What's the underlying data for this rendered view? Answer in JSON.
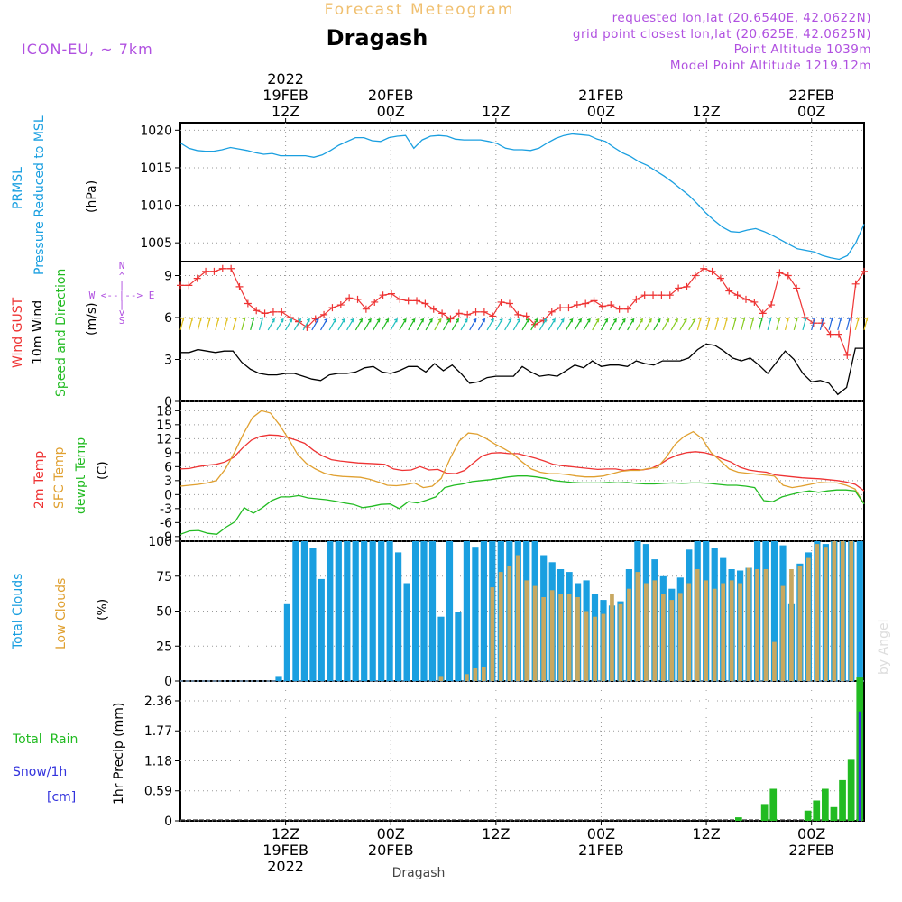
{
  "header": {
    "subtitle": "Forecast Meteogram",
    "title": "Dragash",
    "model": "ICON-EU, ~ 7km",
    "requested": "requested lon,lat (20.6540E, 42.0622N)",
    "gridpoint": "grid point closest lon,lat (20.625E, 42.0625N)",
    "point_alt": "Point Altitude 1039m",
    "model_alt": "Model Point Altitude 1219.12m",
    "footer": "Dragash",
    "credit": "by Angel"
  },
  "colors": {
    "pressure": "#1a9fe0",
    "gust": "#ee3333",
    "wind": "#000000",
    "dir_label": "#22bb22",
    "temp2m": "#ee3333",
    "sfc": "#e0a030",
    "dewpt": "#22bb22",
    "total_clouds": "#1a9fe0",
    "low_clouds": "#c8a860",
    "rain": "#22bb22",
    "snow": "#3333dd",
    "header_orange": "#f0c070",
    "header_purple": "#b050e0"
  },
  "time_axis": {
    "top_labels": [
      {
        "lines": [
          "2022",
          "19FEB",
          "12Z"
        ]
      },
      {
        "lines": [
          "20FEB",
          "00Z"
        ]
      },
      {
        "lines": [
          "12Z"
        ]
      },
      {
        "lines": [
          "21FEB",
          "00Z"
        ]
      },
      {
        "lines": [
          "12Z"
        ]
      },
      {
        "lines": [
          "22FEB",
          "00Z"
        ]
      }
    ],
    "bottom_labels": [
      {
        "lines": [
          "12Z",
          "19FEB",
          "2022"
        ]
      },
      {
        "lines": [
          "00Z",
          "20FEB"
        ]
      },
      {
        "lines": [
          "12Z"
        ]
      },
      {
        "lines": [
          "00Z",
          "21FEB"
        ]
      },
      {
        "lines": [
          "12Z"
        ]
      },
      {
        "lines": [
          "00Z",
          "22FEB"
        ]
      }
    ],
    "tick_hours": [
      12,
      24,
      36,
      48,
      60,
      72
    ]
  },
  "panels": {
    "pressure": {
      "label1": "PRMSL",
      "label2": "Pressure Reduced to MSL",
      "unit": "(hPa)"
    },
    "wind": {
      "label_gust": "Wind GUST",
      "label_wind": "10m Wind",
      "label_dir": "Speed and Direction",
      "unit": "(m/s)",
      "compass": [
        "N",
        "^",
        "|",
        "W <--|--> E",
        "|",
        "v",
        "S"
      ]
    },
    "temp": {
      "label1": "2m Temp",
      "label2": "SFC Temp",
      "label3": "dewpt Temp",
      "unit": "(C)"
    },
    "clouds": {
      "label1": "Total Clouds",
      "label2": "Low Clouds",
      "unit": "(%)"
    },
    "precip": {
      "label_rain": "Total  Rain",
      "label_snow": "Snow/1h",
      "label_cm": "[cm]",
      "ylabel": "1hr Precip (mm)"
    }
  },
  "chart_data": [
    {
      "type": "line",
      "ylabel": "(hPa)",
      "ylim": [
        1002.5,
        1021
      ],
      "yticks": [
        1005,
        1010,
        1015,
        1020
      ],
      "x_start_hour": 0,
      "x_end_hour": 78,
      "series": [
        {
          "name": "PRMSL",
          "values": [
            1018.3,
            1017.6,
            1017.3,
            1017.2,
            1017.2,
            1017.4,
            1017.7,
            1017.5,
            1017.3,
            1017.0,
            1016.8,
            1016.9,
            1016.6,
            1016.6,
            1016.6,
            1016.6,
            1016.4,
            1016.7,
            1017.3,
            1018.0,
            1018.5,
            1019.0,
            1019.0,
            1018.6,
            1018.5,
            1019.0,
            1019.2,
            1019.3,
            1017.6,
            1018.7,
            1019.2,
            1019.3,
            1019.2,
            1018.8,
            1018.7,
            1018.7,
            1018.7,
            1018.5,
            1018.2,
            1017.6,
            1017.4,
            1017.4,
            1017.3,
            1017.6,
            1018.3,
            1018.9,
            1019.3,
            1019.5,
            1019.4,
            1019.3,
            1018.8,
            1018.5,
            1017.7,
            1017.0,
            1016.5,
            1015.8,
            1015.3,
            1014.6,
            1013.9,
            1013.1,
            1012.2,
            1011.3,
            1010.2,
            1009.0,
            1008.0,
            1007.1,
            1006.5,
            1006.4,
            1006.7,
            1006.9,
            1006.5,
            1006.0,
            1005.4,
            1004.8,
            1004.2,
            1004.0,
            1003.8,
            1003.3,
            1003.0,
            1002.8,
            1003.3,
            1005.0,
            1007.5
          ]
        }
      ]
    },
    {
      "type": "line",
      "ylabel": "(m/s)",
      "ylim": [
        0,
        10
      ],
      "yticks": [
        0,
        3,
        6,
        9
      ],
      "series": [
        {
          "name": "Wind GUST",
          "values": [
            8.3,
            8.3,
            8.8,
            9.3,
            9.3,
            9.5,
            9.5,
            8.2,
            7.0,
            6.5,
            6.3,
            6.4,
            6.4,
            6.0,
            5.7,
            5.3,
            5.9,
            6.2,
            6.7,
            6.9,
            7.4,
            7.3,
            6.6,
            7.1,
            7.6,
            7.7,
            7.3,
            7.2,
            7.2,
            7.0,
            6.6,
            6.3,
            5.9,
            6.3,
            6.2,
            6.4,
            6.4,
            6.1,
            7.1,
            7.0,
            6.2,
            6.1,
            5.5,
            5.8,
            6.4,
            6.7,
            6.7,
            6.9,
            7.0,
            7.2,
            6.8,
            6.9,
            6.6,
            6.6,
            7.3,
            7.6,
            7.6,
            7.6,
            7.6,
            8.1,
            8.2,
            9.0,
            9.5,
            9.3,
            8.8,
            7.9,
            7.6,
            7.3,
            7.1,
            6.3,
            6.9,
            9.2,
            9.0,
            8.1,
            6.0,
            5.6,
            5.6,
            4.8,
            4.8,
            3.3,
            8.4,
            9.3
          ]
        },
        {
          "name": "10m Wind",
          "values": [
            3.5,
            3.5,
            3.7,
            3.6,
            3.5,
            3.6,
            3.6,
            2.8,
            2.3,
            2.0,
            1.9,
            1.9,
            2.0,
            2.0,
            1.8,
            1.6,
            1.5,
            1.9,
            2.0,
            2.0,
            2.1,
            2.4,
            2.5,
            2.1,
            2.0,
            2.2,
            2.5,
            2.5,
            2.1,
            2.7,
            2.2,
            2.6,
            2.0,
            1.3,
            1.4,
            1.7,
            1.8,
            1.8,
            1.8,
            2.5,
            2.1,
            1.8,
            1.9,
            1.8,
            2.2,
            2.6,
            2.4,
            2.9,
            2.5,
            2.6,
            2.6,
            2.5,
            2.9,
            2.7,
            2.6,
            2.9,
            2.9,
            2.9,
            3.1,
            3.7,
            4.1,
            4.0,
            3.6,
            3.1,
            2.9,
            3.1,
            2.6,
            2.0,
            2.8,
            3.6,
            3.0,
            2.0,
            1.4,
            1.5,
            1.3,
            0.5,
            1.0,
            3.8,
            3.8
          ]
        }
      ]
    },
    {
      "type": "line",
      "ylabel": "(C)",
      "ylim": [
        -10,
        20
      ],
      "yticks": [
        -9,
        -6,
        -3,
        0,
        3,
        6,
        9,
        12,
        15,
        18
      ],
      "series": [
        {
          "name": "2m Temp",
          "values": [
            5.5,
            5.6,
            6.0,
            6.3,
            6.5,
            7.0,
            8.0,
            10.0,
            11.7,
            12.5,
            12.8,
            12.7,
            12.3,
            11.7,
            11.0,
            9.5,
            8.3,
            7.5,
            7.2,
            7.0,
            6.8,
            6.7,
            6.6,
            6.5,
            5.5,
            5.2,
            5.3,
            6.0,
            5.3,
            5.4,
            4.6,
            4.5,
            5.2,
            6.8,
            8.3,
            8.9,
            9.0,
            8.8,
            8.8,
            8.3,
            7.8,
            7.2,
            6.5,
            6.2,
            6.0,
            5.8,
            5.6,
            5.4,
            5.5,
            5.5,
            5.2,
            5.4,
            5.3,
            5.6,
            6.5,
            7.7,
            8.5,
            9.0,
            9.2,
            9.0,
            8.5,
            7.7,
            7.0,
            5.9,
            5.3,
            5.0,
            4.8,
            4.2,
            4.0,
            3.8,
            3.6,
            3.5,
            3.4,
            3.2,
            3.0,
            2.7,
            2.2,
            0.8
          ]
        },
        {
          "name": "SFC Temp",
          "values": [
            1.8,
            2.0,
            2.2,
            2.5,
            3.0,
            5.5,
            9.0,
            13.0,
            16.5,
            18.0,
            17.5,
            15.0,
            12.0,
            8.7,
            6.7,
            5.5,
            4.6,
            4.1,
            3.9,
            3.8,
            3.7,
            3.3,
            2.7,
            2.0,
            1.9,
            2.1,
            2.5,
            1.5,
            1.8,
            3.5,
            7.8,
            11.5,
            13.2,
            13.0,
            12.0,
            10.8,
            9.8,
            8.7,
            7.0,
            5.5,
            4.8,
            4.5,
            4.5,
            4.3,
            4.0,
            3.8,
            3.8,
            4.0,
            4.5,
            5.0,
            5.2,
            5.2,
            5.6,
            5.8,
            8.0,
            10.8,
            12.5,
            13.5,
            12.0,
            9.0,
            7.3,
            5.5,
            4.8,
            4.6,
            4.4,
            4.2,
            4.0,
            2.0,
            1.5,
            1.8,
            2.2,
            2.6,
            2.5,
            2.5,
            2.0,
            1.2,
            -2.0
          ]
        },
        {
          "name": "dewpt Temp",
          "values": [
            -8.5,
            -7.8,
            -7.7,
            -8.3,
            -8.5,
            -7.0,
            -5.8,
            -2.8,
            -4.0,
            -2.8,
            -1.3,
            -0.5,
            -0.5,
            -0.2,
            -0.7,
            -0.9,
            -1.1,
            -1.4,
            -1.8,
            -2.1,
            -2.8,
            -2.5,
            -2.1,
            -2.0,
            -3.0,
            -1.5,
            -1.8,
            -1.2,
            -0.5,
            1.5,
            2.0,
            2.3,
            2.8,
            3.0,
            3.2,
            3.5,
            3.8,
            4.0,
            4.0,
            3.8,
            3.5,
            3.0,
            2.8,
            2.6,
            2.5,
            2.5,
            2.5,
            2.6,
            2.5,
            2.6,
            2.4,
            2.3,
            2.3,
            2.4,
            2.5,
            2.4,
            2.5,
            2.5,
            2.4,
            2.2,
            2.0,
            2.0,
            1.8,
            1.5,
            -1.3,
            -1.5,
            -0.5,
            0.0,
            0.5,
            0.8,
            0.5,
            0.8,
            1.0,
            1.0,
            0.8,
            -2.0
          ]
        }
      ]
    },
    {
      "type": "bar",
      "ylabel": "(%)",
      "ylim": [
        0,
        100
      ],
      "yticks": [
        0,
        25,
        50,
        75,
        100
      ],
      "series": [
        {
          "name": "Total Clouds",
          "values": [
            0,
            0,
            0,
            0,
            0,
            0,
            0,
            0,
            0,
            0,
            0,
            3,
            55,
            100,
            100,
            95,
            73,
            100,
            100,
            100,
            100,
            100,
            100,
            100,
            100,
            92,
            70,
            100,
            100,
            100,
            46,
            100,
            49,
            100,
            96,
            100,
            100,
            100,
            100,
            100,
            100,
            100,
            90,
            85,
            80,
            78,
            70,
            72,
            62,
            58,
            54,
            57,
            80,
            100,
            98,
            87,
            75,
            66,
            74,
            94,
            100,
            100,
            95,
            88,
            80,
            79,
            81,
            100,
            100,
            100,
            97,
            55,
            84,
            92,
            100,
            98,
            100,
            100,
            100,
            100
          ]
        },
        {
          "name": "Low Clouds",
          "values": [
            0,
            0,
            0,
            0,
            0,
            0,
            0,
            0,
            0,
            0,
            0,
            0,
            0,
            0,
            0,
            0,
            0,
            0,
            0,
            0,
            0,
            0,
            0,
            0,
            0,
            0,
            0,
            0,
            0,
            0,
            3,
            0,
            0,
            5,
            9,
            10,
            67,
            78,
            82,
            90,
            72,
            68,
            60,
            65,
            62,
            62,
            60,
            50,
            46,
            48,
            62,
            55,
            66,
            78,
            70,
            72,
            62,
            58,
            63,
            70,
            80,
            72,
            66,
            70,
            72,
            70,
            81,
            80,
            80,
            28,
            68,
            80,
            82,
            88,
            98,
            96,
            100,
            100,
            100
          ]
        }
      ]
    },
    {
      "type": "bar",
      "ylabel": "1hr Precip (mm)",
      "ylim": [
        0,
        2.75
      ],
      "yticks": [
        0,
        0.59,
        1.18,
        1.77,
        2.36
      ],
      "series": [
        {
          "name": "Total Rain",
          "values": [
            0,
            0,
            0,
            0,
            0,
            0,
            0,
            0,
            0,
            0,
            0,
            0,
            0,
            0,
            0,
            0,
            0,
            0,
            0,
            0,
            0,
            0,
            0,
            0,
            0,
            0,
            0,
            0,
            0,
            0,
            0,
            0,
            0,
            0,
            0,
            0,
            0,
            0,
            0,
            0,
            0,
            0,
            0,
            0,
            0,
            0,
            0,
            0,
            0,
            0,
            0,
            0,
            0,
            0,
            0,
            0,
            0,
            0,
            0,
            0,
            0,
            0,
            0,
            0,
            0.07,
            0,
            0,
            0.33,
            0.63,
            0,
            0,
            0,
            0.2,
            0.4,
            0.63,
            0.27,
            0.8,
            1.2,
            2.82
          ]
        },
        {
          "name": "Snow/1h",
          "values": [
            0,
            0,
            0,
            0,
            0,
            0,
            0,
            0,
            0,
            0,
            0,
            0,
            0,
            0,
            0,
            0,
            0,
            0,
            0,
            0,
            0,
            0,
            0,
            0,
            0,
            0,
            0,
            0,
            0,
            0,
            0,
            0,
            0,
            0,
            0,
            0,
            0,
            0,
            0,
            0,
            0,
            0,
            0,
            0,
            0,
            0,
            0,
            0,
            0,
            0,
            0,
            0,
            0,
            0,
            0,
            0,
            0,
            0,
            0,
            0,
            0,
            0,
            0,
            0,
            0,
            0,
            0,
            0,
            0,
            0,
            0,
            0,
            0,
            0,
            0,
            0,
            0,
            0,
            2.15
          ]
        }
      ]
    }
  ]
}
